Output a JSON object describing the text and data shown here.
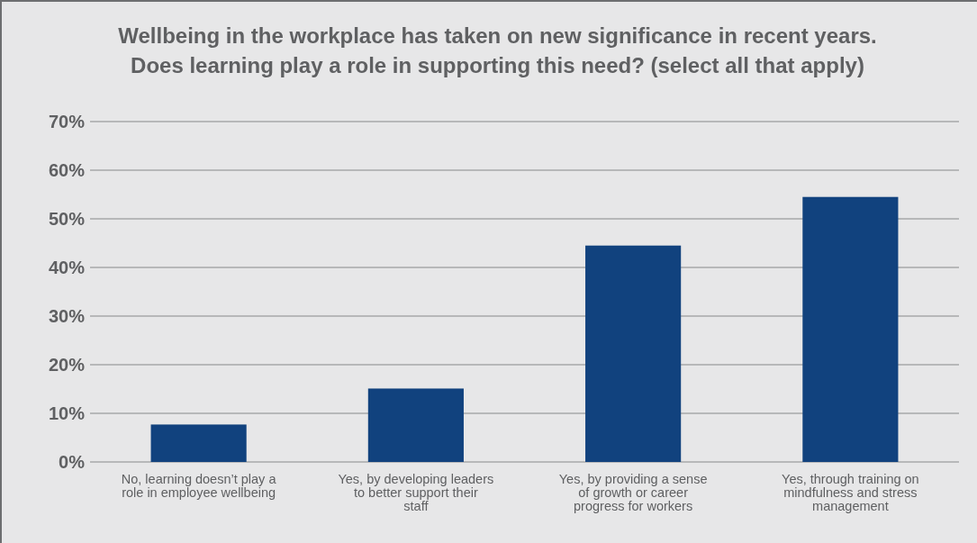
{
  "chart_data": {
    "type": "bar",
    "title": "Wellbeing in the workplace has taken on new significance in recent years. Does learning play a role in supporting this need? (select all that apply)",
    "categories": [
      "No, learning doesn’t play a role in employee wellbeing",
      "Yes, by developing leaders to better support their staff",
      "Yes, by providing a sense of growth or career progress for workers",
      "Yes, through training on mindfulness and stress management"
    ],
    "values": [
      7.7,
      15.1,
      44.5,
      54.5
    ],
    "color": "#11427e",
    "ylim": [
      0,
      70
    ],
    "yticks": [
      {
        "value": 0,
        "label": "0%"
      },
      {
        "value": 10,
        "label": "10%"
      },
      {
        "value": 20,
        "label": "20%"
      },
      {
        "value": 30,
        "label": "30%"
      },
      {
        "value": 40,
        "label": "40%"
      },
      {
        "value": 50,
        "label": "50%"
      },
      {
        "value": 60,
        "label": "60%"
      },
      {
        "value": 70,
        "label": "70%"
      }
    ],
    "grid": "y"
  }
}
